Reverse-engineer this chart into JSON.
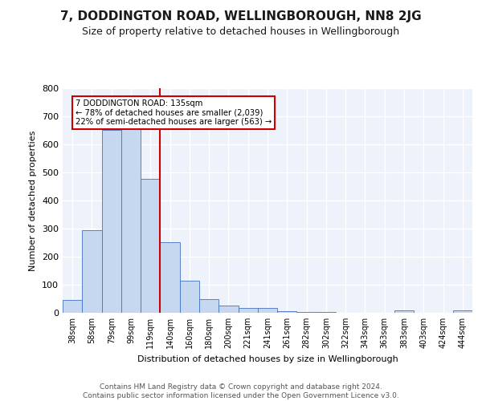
{
  "title": "7, DODDINGTON ROAD, WELLINGBOROUGH, NN8 2JG",
  "subtitle": "Size of property relative to detached houses in Wellingborough",
  "xlabel": "Distribution of detached houses by size in Wellingborough",
  "ylabel": "Number of detached properties",
  "categories": [
    "38sqm",
    "58sqm",
    "79sqm",
    "99sqm",
    "119sqm",
    "140sqm",
    "160sqm",
    "180sqm",
    "200sqm",
    "221sqm",
    "241sqm",
    "261sqm",
    "282sqm",
    "302sqm",
    "322sqm",
    "343sqm",
    "363sqm",
    "383sqm",
    "403sqm",
    "424sqm",
    "444sqm"
  ],
  "values": [
    47,
    293,
    650,
    660,
    478,
    251,
    113,
    50,
    27,
    18,
    17,
    7,
    2,
    3,
    1,
    0,
    0,
    9,
    0,
    0,
    8
  ],
  "bar_color": "#c5d8f0",
  "bar_edge_color": "#4472c4",
  "vline_x_index": 4.5,
  "vline_color": "#cc0000",
  "annotation_text": "7 DODDINGTON ROAD: 135sqm\n← 78% of detached houses are smaller (2,039)\n22% of semi-detached houses are larger (563) →",
  "annotation_box_color": "#ffffff",
  "annotation_box_edge": "#cc0000",
  "ylim": [
    0,
    800
  ],
  "yticks": [
    0,
    100,
    200,
    300,
    400,
    500,
    600,
    700,
    800
  ],
  "background_color": "#eef2fa",
  "title_fontsize": 11,
  "subtitle_fontsize": 9,
  "footer_text": "Contains HM Land Registry data © Crown copyright and database right 2024.\nContains public sector information licensed under the Open Government Licence v3.0.",
  "footer_fontsize": 6.5
}
